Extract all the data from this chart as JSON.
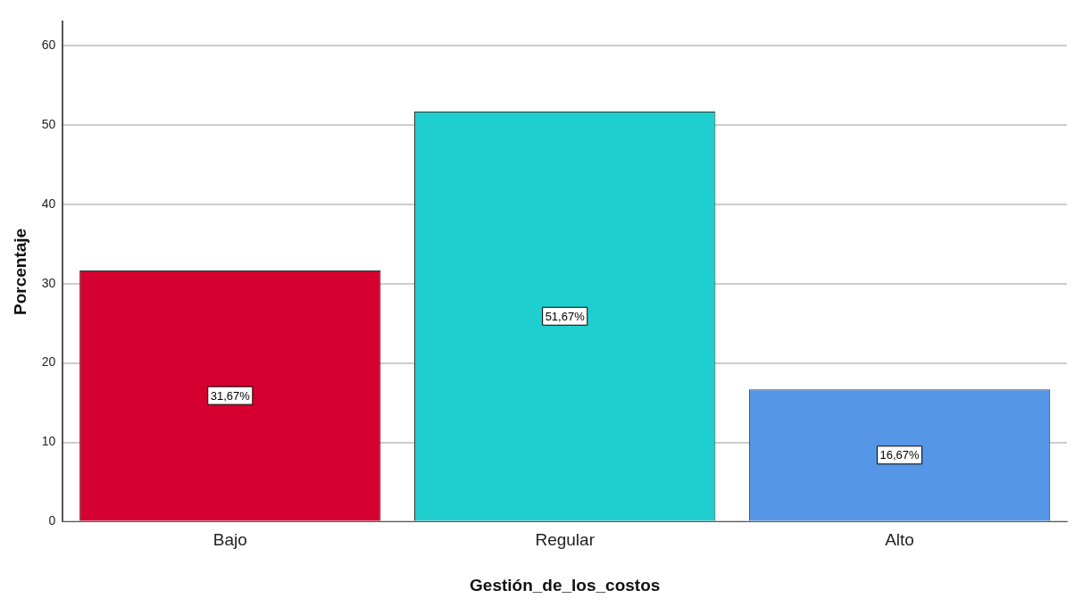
{
  "chart_data": {
    "type": "bar",
    "xlabel": "Gestión_de_los_costos",
    "ylabel": "Porcentaje",
    "categories": [
      "Bajo",
      "Regular",
      "Alto"
    ],
    "values": [
      31.67,
      51.67,
      16.67
    ],
    "colors": [
      "#d5002f",
      "#1fcece",
      "#5597e6"
    ],
    "value_labels": [
      "31,67%",
      "51,67%",
      "16,67%"
    ],
    "ylim": [
      0,
      63
    ],
    "yticks": [
      0,
      10,
      20,
      30,
      40,
      50,
      60
    ],
    "grid": "y",
    "legend": false
  }
}
